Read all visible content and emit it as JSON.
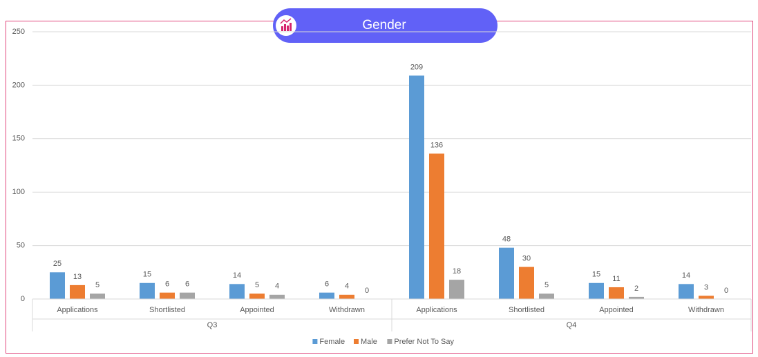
{
  "chart_data": {
    "type": "bar",
    "title": "Gender",
    "categories": [
      "Applications",
      "Shortlisted",
      "Appointed",
      "Withdrawn",
      "Applications",
      "Shortlisted",
      "Appointed",
      "Withdrawn"
    ],
    "groups": [
      "Q3",
      "Q4"
    ],
    "series": [
      {
        "name": "Female",
        "color": "#5b9bd5",
        "values": [
          25,
          15,
          14,
          6,
          209,
          48,
          15,
          14
        ]
      },
      {
        "name": "Male",
        "color": "#ed7d31",
        "values": [
          13,
          6,
          5,
          4,
          136,
          30,
          11,
          3
        ]
      },
      {
        "name": "Prefer Not To Say",
        "color": "#a5a5a5",
        "values": [
          5,
          6,
          4,
          0,
          18,
          5,
          2,
          0
        ]
      }
    ],
    "ylim": [
      0,
      250
    ],
    "yticks": [
      0,
      50,
      100,
      150,
      200,
      250
    ],
    "grid": true,
    "legend": "bottom"
  }
}
